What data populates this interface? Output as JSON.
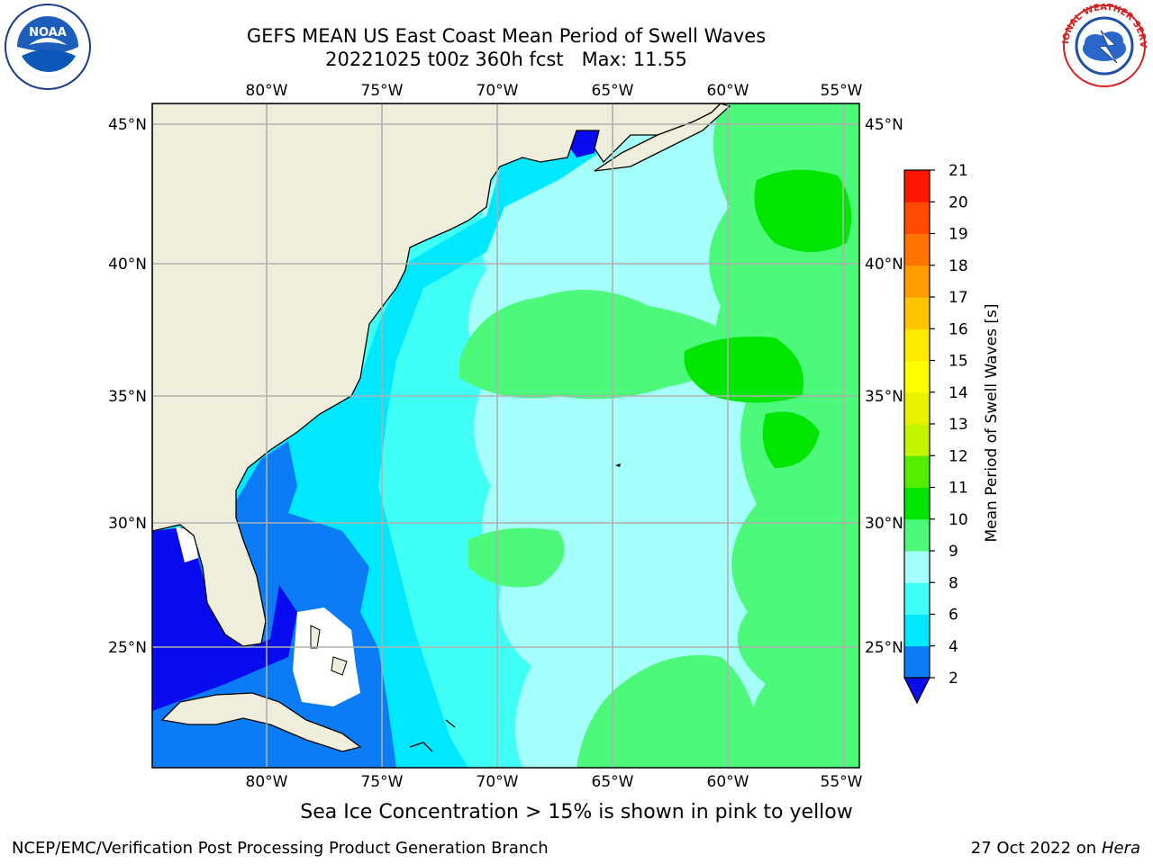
{
  "title": {
    "line1": "GEFS MEAN US East Coast Mean Period of Swell Waves",
    "line2": "20221025 t00z 360h fcst   Max: 11.55"
  },
  "logos": {
    "left": {
      "icon": "noaa-logo",
      "text": "NOAA"
    },
    "right": {
      "icon": "national-weather-service-logo",
      "text": "NATIONAL WEATHER SERVICE"
    }
  },
  "map": {
    "lon_labels": [
      "80°W",
      "75°W",
      "70°W",
      "65°W",
      "60°W",
      "55°W"
    ],
    "lat_labels": [
      "45°N",
      "40°N",
      "35°N",
      "30°N",
      "25°N"
    ],
    "colors": {
      "land": "#efeedc",
      "grid": "#b0b0b0",
      "ocean_missing": "#ffffff"
    }
  },
  "colorbar": {
    "label": "Mean Period of Swell Waves [s]",
    "ticks": [
      "2",
      "4",
      "6",
      "8",
      "9",
      "10",
      "11",
      "12",
      "13",
      "14",
      "15",
      "16",
      "17",
      "18",
      "19",
      "20",
      "21"
    ],
    "colors": [
      "#0b7cf5",
      "#00e8ff",
      "#40fff4",
      "#a5fffb",
      "#4cf97a",
      "#00e600",
      "#55ee00",
      "#c3f400",
      "#ebf200",
      "#ffff00",
      "#ffea00",
      "#ffc500",
      "#ff9c00",
      "#ff7400",
      "#ff4a00",
      "#ff1600"
    ],
    "under_color": "#0a0aee"
  },
  "caption": "Sea Ice Concentration > 15% is shown in pink to yellow",
  "footer": {
    "left": "NCEP/EMC/Verification Post Processing Product Generation Branch",
    "right_date": "27 Oct 2022 on ",
    "right_host": "Hera"
  }
}
